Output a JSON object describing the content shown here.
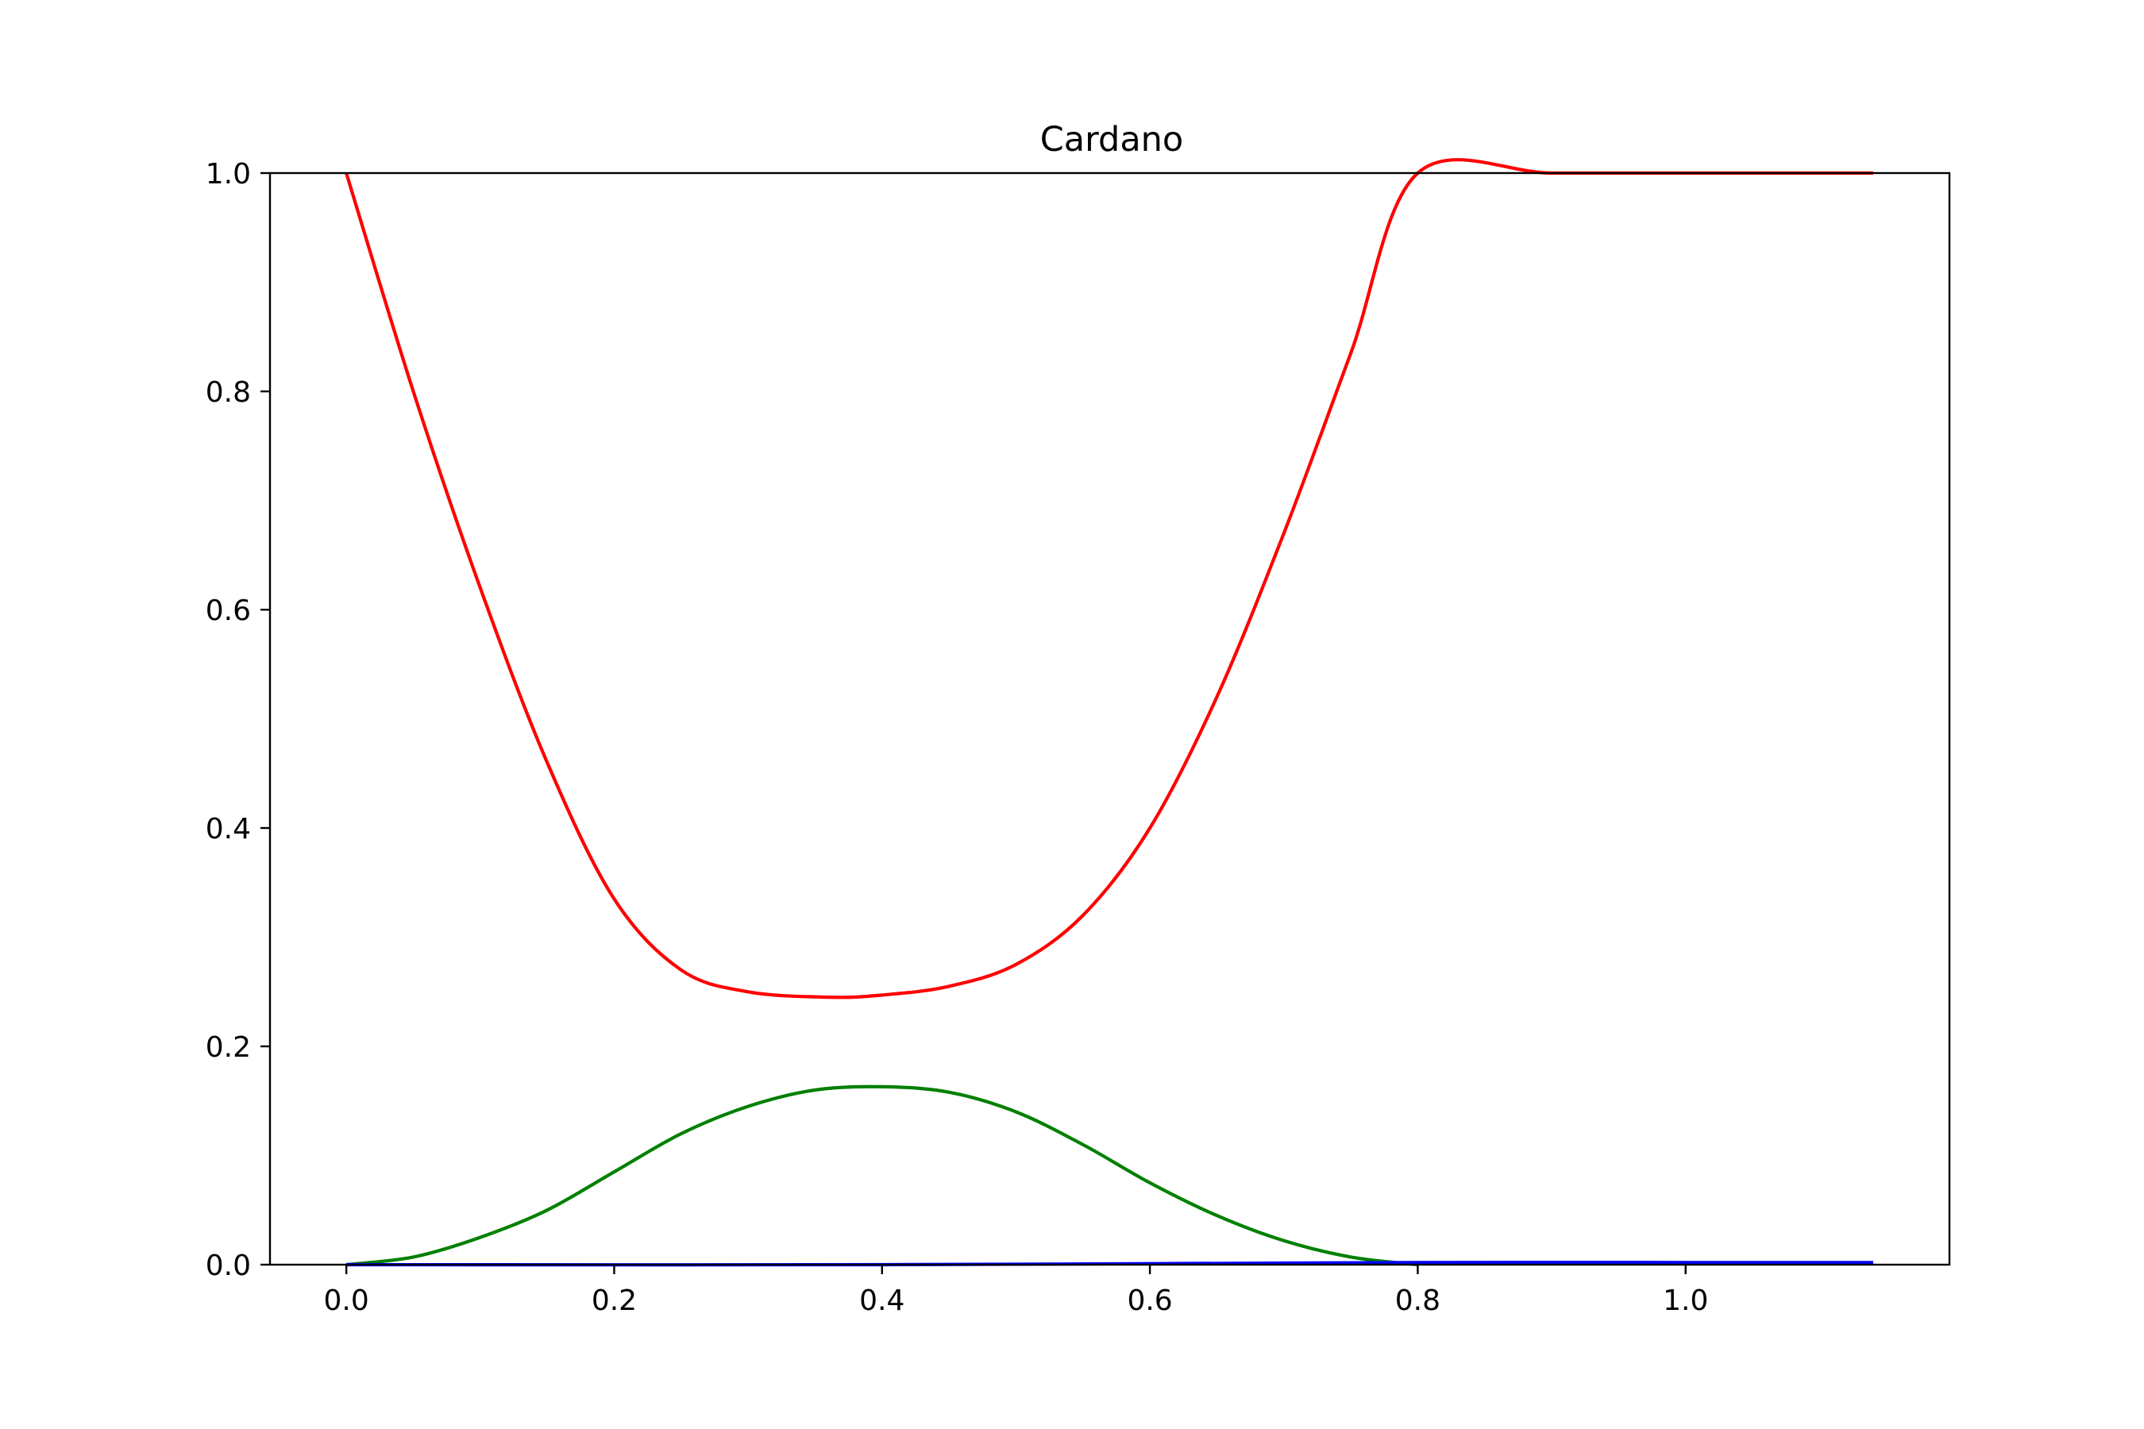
{
  "chart_data": {
    "type": "line",
    "title": "Cardano",
    "xlabel": "",
    "ylabel": "",
    "xlim": [
      -0.057,
      1.197
    ],
    "ylim": [
      0.0,
      1.0
    ],
    "x_ticks": [
      0.0,
      0.2,
      0.4,
      0.6,
      0.8,
      1.0
    ],
    "x_tick_labels": [
      "0.0",
      "0.2",
      "0.4",
      "0.6",
      "0.8",
      "1.0"
    ],
    "y_ticks": [
      0.0,
      0.2,
      0.4,
      0.6,
      0.8,
      1.0
    ],
    "y_tick_labels": [
      "0.0",
      "0.2",
      "0.4",
      "0.6",
      "0.8",
      "1.0"
    ],
    "grid": false,
    "legend": null,
    "series": [
      {
        "color": "#ff0000",
        "x": [
          0.0,
          0.05,
          0.1,
          0.15,
          0.2,
          0.25,
          0.3,
          0.36,
          0.4,
          0.45,
          0.5,
          0.55,
          0.6,
          0.65,
          0.7,
          0.75,
          0.8,
          0.9,
          1.0,
          1.14
        ],
        "y": [
          1.0,
          0.8,
          0.62,
          0.46,
          0.335,
          0.27,
          0.25,
          0.245,
          0.247,
          0.255,
          0.275,
          0.32,
          0.4,
          0.52,
          0.67,
          0.835,
          1.0,
          1.0,
          1.0,
          1.0
        ]
      },
      {
        "color": "#008000",
        "x": [
          0.0,
          0.05,
          0.1,
          0.15,
          0.2,
          0.25,
          0.3,
          0.35,
          0.4,
          0.45,
          0.5,
          0.55,
          0.6,
          0.65,
          0.7,
          0.75,
          0.8
        ],
        "y": [
          0.0,
          0.007,
          0.025,
          0.05,
          0.085,
          0.12,
          0.145,
          0.16,
          0.163,
          0.158,
          0.14,
          0.11,
          0.075,
          0.045,
          0.022,
          0.007,
          0.0
        ]
      },
      {
        "color": "#0000ff",
        "x": [
          0.0,
          0.4,
          0.8,
          1.0,
          1.14
        ],
        "y": [
          0.0,
          0.0,
          0.002,
          0.002,
          0.002
        ]
      }
    ]
  }
}
